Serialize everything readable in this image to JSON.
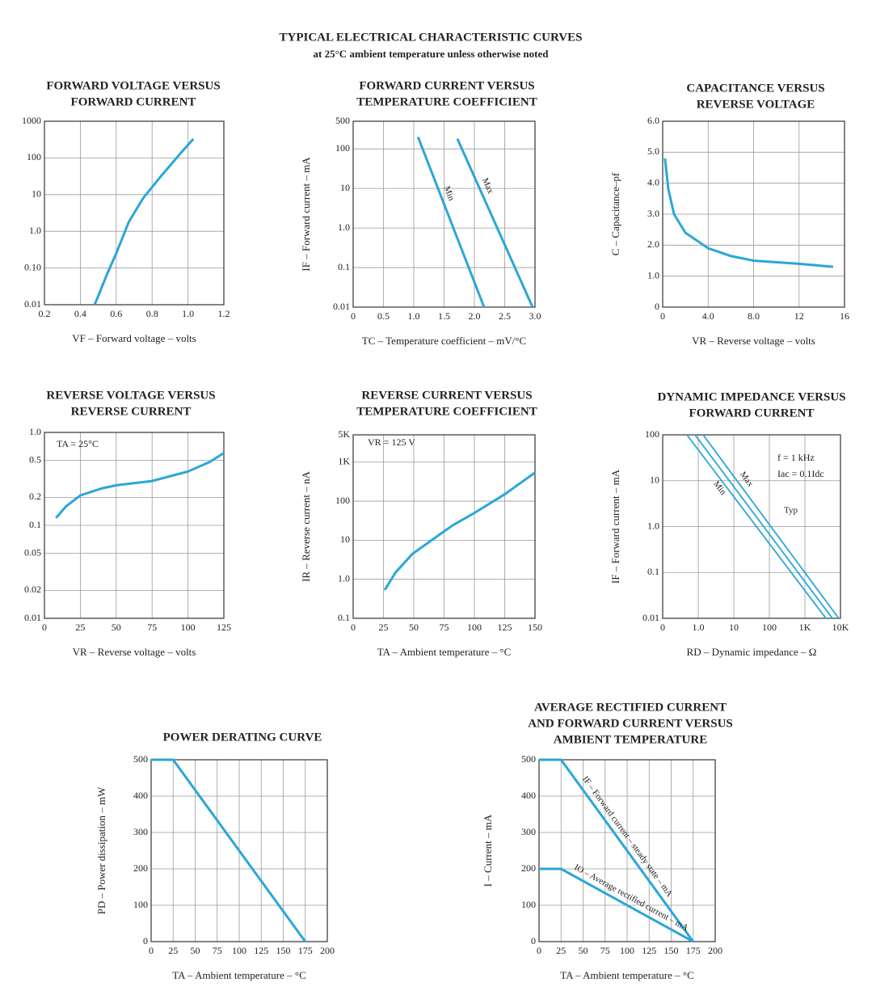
{
  "header": {
    "title": "TYPICAL ELECTRICAL CHARACTERISTIC CURVES",
    "subtitle": "at 25°C ambient temperature unless otherwise noted"
  },
  "chart_data": [
    {
      "type": "line",
      "title": [
        "FORWARD VOLTAGE VERSUS",
        "FORWARD CURRENT"
      ],
      "x_label": "VF – Forward voltage – volts",
      "xlim": [
        0.2,
        1.2
      ],
      "xticks": [
        0.2,
        0.4,
        0.6,
        0.8,
        {
          "value": 1,
          "label": "1.0"
        },
        1.2
      ],
      "ylim": [
        0.01,
        1000
      ],
      "ylog": true,
      "yticks": [
        0.01,
        {
          "value": 0.1,
          "label": "0.10"
        },
        {
          "value": 1,
          "label": "1.0"
        },
        10,
        100,
        1000
      ],
      "grid": true,
      "series": [
        {
          "color": "#2aa7d6",
          "x": [
            0.48,
            0.55,
            0.6,
            0.67,
            0.75,
            0.85,
            0.95,
            1.03
          ],
          "values": [
            0.01,
            0.07,
            0.25,
            1.8,
            8,
            32,
            120,
            330
          ]
        }
      ]
    },
    {
      "type": "line",
      "title": [
        "FORWARD CURRENT VERSUS",
        "TEMPERATURE COEFFICIENT"
      ],
      "x_label": "TC – Temperature coefficient – mV/°C",
      "y_label": "IF – Forward current – mA",
      "xlim": [
        0,
        3
      ],
      "xticks": [
        0,
        0.5,
        {
          "value": 1,
          "label": "1.0"
        },
        1.5,
        {
          "value": 2,
          "label": "2.0"
        },
        2.5,
        {
          "value": 3,
          "label": "3.0"
        }
      ],
      "ylim": [
        0.01,
        500
      ],
      "ylog": true,
      "yticks": [
        0.01,
        0.1,
        {
          "value": 1,
          "label": "1.0"
        },
        10,
        100,
        500
      ],
      "grid": true,
      "series": [
        {
          "name": "Min",
          "color": "#2aa7d6",
          "x": [
            1.07,
            2.16
          ],
          "values": [
            200,
            0.01
          ]
        },
        {
          "name": "Max",
          "color": "#2aa7d6",
          "x": [
            1.72,
            2.96
          ],
          "values": [
            180,
            0.01
          ]
        }
      ]
    },
    {
      "type": "line",
      "title": [
        "CAPACITANCE VERSUS",
        "REVERSE VOLTAGE"
      ],
      "x_label": "VR – Reverse voltage – volts",
      "y_label": "C – Capacitance–pf",
      "xlim": [
        0,
        16
      ],
      "xticks": [
        0,
        {
          "value": 4,
          "label": "4.0"
        },
        {
          "value": 8,
          "label": "8.0"
        },
        12,
        16
      ],
      "ylim": [
        0,
        6
      ],
      "yticks": [
        0,
        {
          "value": 1,
          "label": "1.0"
        },
        {
          "value": 2,
          "label": "2.0"
        },
        {
          "value": 3,
          "label": "3.0"
        },
        {
          "value": 4,
          "label": "4.0"
        },
        {
          "value": 5,
          "label": "5.0"
        },
        {
          "value": 6,
          "label": "6.0"
        }
      ],
      "grid": true,
      "series": [
        {
          "color": "#2aa7d6",
          "x": [
            0.2,
            0.5,
            1,
            2,
            4,
            6,
            8,
            12,
            15
          ],
          "values": [
            4.8,
            3.8,
            3.0,
            2.4,
            1.9,
            1.65,
            1.5,
            1.4,
            1.3
          ]
        }
      ]
    },
    {
      "type": "line",
      "title": [
        "REVERSE VOLTAGE VERSUS",
        "REVERSE CURRENT"
      ],
      "x_label": "VR – Reverse voltage – volts",
      "annotations": [
        "TA = 25°C"
      ],
      "xlim": [
        0,
        125
      ],
      "xticks": [
        0,
        25,
        50,
        75,
        100,
        125
      ],
      "ylim": [
        0.01,
        1
      ],
      "ylog": true,
      "yticks": [
        0.01,
        0.02,
        0.05,
        0.1,
        0.2,
        0.5,
        {
          "value": 1,
          "label": "1.0"
        }
      ],
      "grid": true,
      "series": [
        {
          "color": "#2aa7d6",
          "x": [
            8,
            15,
            25,
            40,
            50,
            75,
            100,
            115,
            125
          ],
          "values": [
            0.12,
            0.16,
            0.21,
            0.25,
            0.27,
            0.3,
            0.38,
            0.48,
            0.6
          ]
        }
      ]
    },
    {
      "type": "line",
      "title": [
        "REVERSE CURRENT VERSUS",
        "TEMPERATURE COEFFICIENT"
      ],
      "x_label": "TA – Ambient temperature – °C",
      "y_label": "IR – Reverse current – nA",
      "annotations": [
        "VR = 125 V"
      ],
      "xlim": [
        0,
        150
      ],
      "xticks": [
        0,
        25,
        50,
        75,
        100,
        125,
        150
      ],
      "ylim": [
        0.1,
        5000
      ],
      "ylog": true,
      "yticks": [
        0.1,
        {
          "value": 1,
          "label": "1.0"
        },
        10,
        100,
        {
          "value": 1000,
          "label": "1K"
        },
        {
          "value": 5000,
          "label": "5K"
        }
      ],
      "grid": true,
      "series": [
        {
          "color": "#2aa7d6",
          "x": [
            26,
            35,
            49,
            82,
            100,
            125,
            150
          ],
          "values": [
            0.53,
            1.5,
            4.5,
            24,
            50,
            150,
            540
          ]
        }
      ]
    },
    {
      "type": "line",
      "title": [
        "DYNAMIC IMPEDANCE VERSUS",
        "FORWARD CURRENT"
      ],
      "x_label": "RD – Dynamic impedance – Ω",
      "y_label": "IF – Forward current – mA",
      "annotations": [
        "f = 1 kHz",
        "Iac = 0.1Idc"
      ],
      "xlim": [
        0.1,
        10000
      ],
      "xlog": true,
      "xticks": [
        {
          "value": 0.1,
          "label": "0"
        },
        {
          "value": 1,
          "label": "1.0"
        },
        10,
        100,
        {
          "value": 1000,
          "label": "1K"
        },
        {
          "value": 10000,
          "label": "10K"
        }
      ],
      "ylim": [
        0.01,
        100
      ],
      "ylog": true,
      "yticks": [
        0.01,
        0.1,
        {
          "value": 1,
          "label": "1.0"
        },
        10,
        100
      ],
      "grid": true,
      "series": [
        {
          "name": "Max",
          "color": "#2aa7d6",
          "x": [
            1.37,
            8900
          ],
          "values": [
            100,
            0.01
          ]
        },
        {
          "name": "Min",
          "color": "#2aa7d6",
          "x": [
            0.48,
            3900
          ],
          "values": [
            100,
            0.01
          ]
        },
        {
          "name": "Typ",
          "color": "#2aa7d6",
          "x": [
            0.81,
            5900
          ],
          "values": [
            100,
            0.01
          ]
        }
      ]
    },
    {
      "type": "line",
      "title": [
        "POWER DERATING CURVE"
      ],
      "x_label": "TA – Ambient temperature – °C",
      "y_label": "PD – Power dissipation – mW",
      "xlim": [
        0,
        200
      ],
      "xticks": [
        0,
        25,
        50,
        75,
        100,
        125,
        150,
        175,
        200
      ],
      "ylim": [
        0,
        500
      ],
      "yticks": [
        0,
        100,
        200,
        300,
        400,
        500
      ],
      "grid": true,
      "series": [
        {
          "color": "#2aa7d6",
          "x": [
            0,
            25,
            175
          ],
          "values": [
            500,
            500,
            0
          ]
        }
      ]
    },
    {
      "type": "line",
      "title": [
        "AVERAGE RECTIFIED CURRENT",
        "AND FORWARD CURRENT VERSUS",
        "AMBIENT TEMPERATURE"
      ],
      "x_label": "TA – Ambient temperature – °C",
      "y_label": "I – Current – mA",
      "xlim": [
        0,
        200
      ],
      "xticks": [
        0,
        25,
        50,
        75,
        100,
        125,
        150,
        175,
        200
      ],
      "ylim": [
        0,
        500
      ],
      "yticks": [
        0,
        100,
        200,
        300,
        400,
        500
      ],
      "grid": true,
      "series": [
        {
          "name": "IF – Forward current – steady state – mA",
          "color": "#2aa7d6",
          "x": [
            0,
            25,
            175
          ],
          "values": [
            500,
            500,
            0
          ]
        },
        {
          "name": "IO – Average rectified current – mA",
          "color": "#2aa7d6",
          "x": [
            0,
            25,
            175
          ],
          "values": [
            200,
            200,
            0
          ]
        }
      ]
    }
  ]
}
